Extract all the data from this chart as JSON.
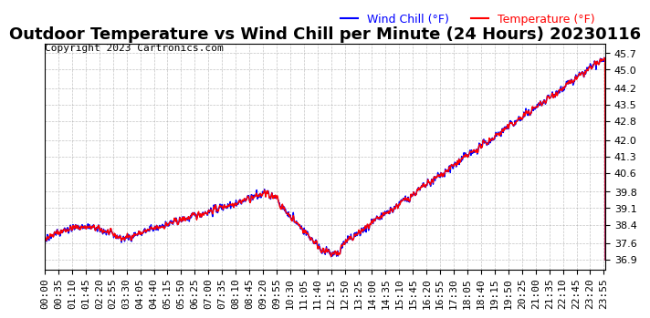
{
  "title": "Outdoor Temperature vs Wind Chill per Minute (24 Hours) 20230116",
  "copyright": "Copyright 2023 Cartronics.com",
  "legend_wind_chill": "Wind Chill (°F)",
  "legend_temperature": "Temperature (°F)",
  "wind_chill_color": "#0000ff",
  "temperature_color": "#ff0000",
  "background_color": "#ffffff",
  "grid_color": "#aaaaaa",
  "ylim_min": 36.5,
  "ylim_max": 46.1,
  "yticks": [
    36.9,
    37.6,
    38.4,
    39.1,
    39.8,
    40.6,
    41.3,
    42.0,
    42.8,
    43.5,
    44.2,
    45.0,
    45.7
  ],
  "title_fontsize": 13,
  "copyright_fontsize": 8,
  "legend_fontsize": 9,
  "tick_fontsize": 8,
  "line_width": 1.0
}
